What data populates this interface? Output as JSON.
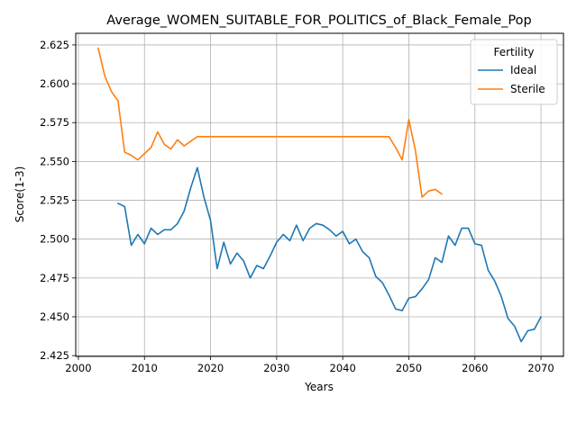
{
  "chart_data": {
    "type": "line",
    "title": "Average_WOMEN_SUITABLE_FOR_POLITICS_of_Black_Female_Pop",
    "xlabel": "Years",
    "ylabel": "Score(1-3)",
    "xlim": [
      1999.6,
      2073.4
    ],
    "ylim": [
      2.4245,
      2.6325
    ],
    "xticks": [
      2000,
      2010,
      2020,
      2030,
      2040,
      2050,
      2060,
      2070
    ],
    "yticks": [
      2.425,
      2.45,
      2.475,
      2.5,
      2.525,
      2.55,
      2.575,
      2.6,
      2.625
    ],
    "xtick_labels": [
      "2000",
      "2010",
      "2020",
      "2030",
      "2040",
      "2050",
      "2060",
      "2070"
    ],
    "ytick_labels": [
      "2.425",
      "2.450",
      "2.475",
      "2.500",
      "2.525",
      "2.550",
      "2.575",
      "2.600",
      "2.625"
    ],
    "grid": true,
    "legend": {
      "title": "Fertility",
      "placement": "top-right"
    },
    "series": [
      {
        "name": "Ideal",
        "color": "#1f77b4",
        "x": [
          2006,
          2007,
          2008,
          2009,
          2010,
          2011,
          2012,
          2013,
          2014,
          2015,
          2016,
          2017,
          2018,
          2019,
          2020,
          2021,
          2022,
          2023,
          2024,
          2025,
          2026,
          2027,
          2028,
          2029,
          2030,
          2031,
          2032,
          2033,
          2034,
          2035,
          2036,
          2037,
          2038,
          2039,
          2040,
          2041,
          2042,
          2043,
          2044,
          2045,
          2046,
          2047,
          2048,
          2049,
          2050,
          2051,
          2052,
          2053,
          2054,
          2055,
          2056,
          2057,
          2058,
          2059,
          2060,
          2061,
          2062,
          2063,
          2064,
          2065,
          2066,
          2067,
          2068,
          2069,
          2070
        ],
        "y": [
          2.523,
          2.521,
          2.496,
          2.503,
          2.497,
          2.507,
          2.503,
          2.506,
          2.506,
          2.51,
          2.518,
          2.533,
          2.546,
          2.527,
          2.512,
          2.481,
          2.498,
          2.484,
          2.491,
          2.486,
          2.475,
          2.483,
          2.481,
          2.489,
          2.498,
          2.503,
          2.499,
          2.509,
          2.499,
          2.507,
          2.51,
          2.509,
          2.506,
          2.502,
          2.505,
          2.497,
          2.5,
          2.492,
          2.488,
          2.476,
          2.472,
          2.464,
          2.455,
          2.454,
          2.462,
          2.463,
          2.468,
          2.474,
          2.488,
          2.485,
          2.502,
          2.496,
          2.507,
          2.507,
          2.497,
          2.496,
          2.48,
          2.473,
          2.463,
          2.449,
          2.444,
          2.434,
          2.441,
          2.442,
          2.45
        ]
      },
      {
        "name": "Sterile",
        "color": "#ff7f0e",
        "x": [
          2003,
          2004,
          2005,
          2006,
          2007,
          2008,
          2009,
          2010,
          2011,
          2012,
          2013,
          2014,
          2015,
          2016,
          2017,
          2018,
          2019,
          2020,
          2021,
          2022,
          2023,
          2024,
          2025,
          2026,
          2027,
          2028,
          2029,
          2030,
          2031,
          2032,
          2033,
          2034,
          2035,
          2036,
          2037,
          2038,
          2039,
          2040,
          2041,
          2042,
          2043,
          2044,
          2045,
          2046,
          2047,
          2048,
          2049,
          2050,
          2051,
          2052,
          2053,
          2054,
          2055
        ],
        "y": [
          2.623,
          2.605,
          2.595,
          2.589,
          2.556,
          2.554,
          2.551,
          2.555,
          2.559,
          2.569,
          2.561,
          2.558,
          2.564,
          2.56,
          2.563,
          2.566,
          2.566,
          2.566,
          2.566,
          2.566,
          2.566,
          2.566,
          2.566,
          2.566,
          2.566,
          2.566,
          2.566,
          2.566,
          2.566,
          2.566,
          2.566,
          2.566,
          2.566,
          2.566,
          2.566,
          2.566,
          2.566,
          2.566,
          2.566,
          2.566,
          2.566,
          2.566,
          2.566,
          2.566,
          2.566,
          2.559,
          2.551,
          2.577,
          2.557,
          2.527,
          2.531,
          2.532,
          2.529
        ]
      }
    ]
  }
}
